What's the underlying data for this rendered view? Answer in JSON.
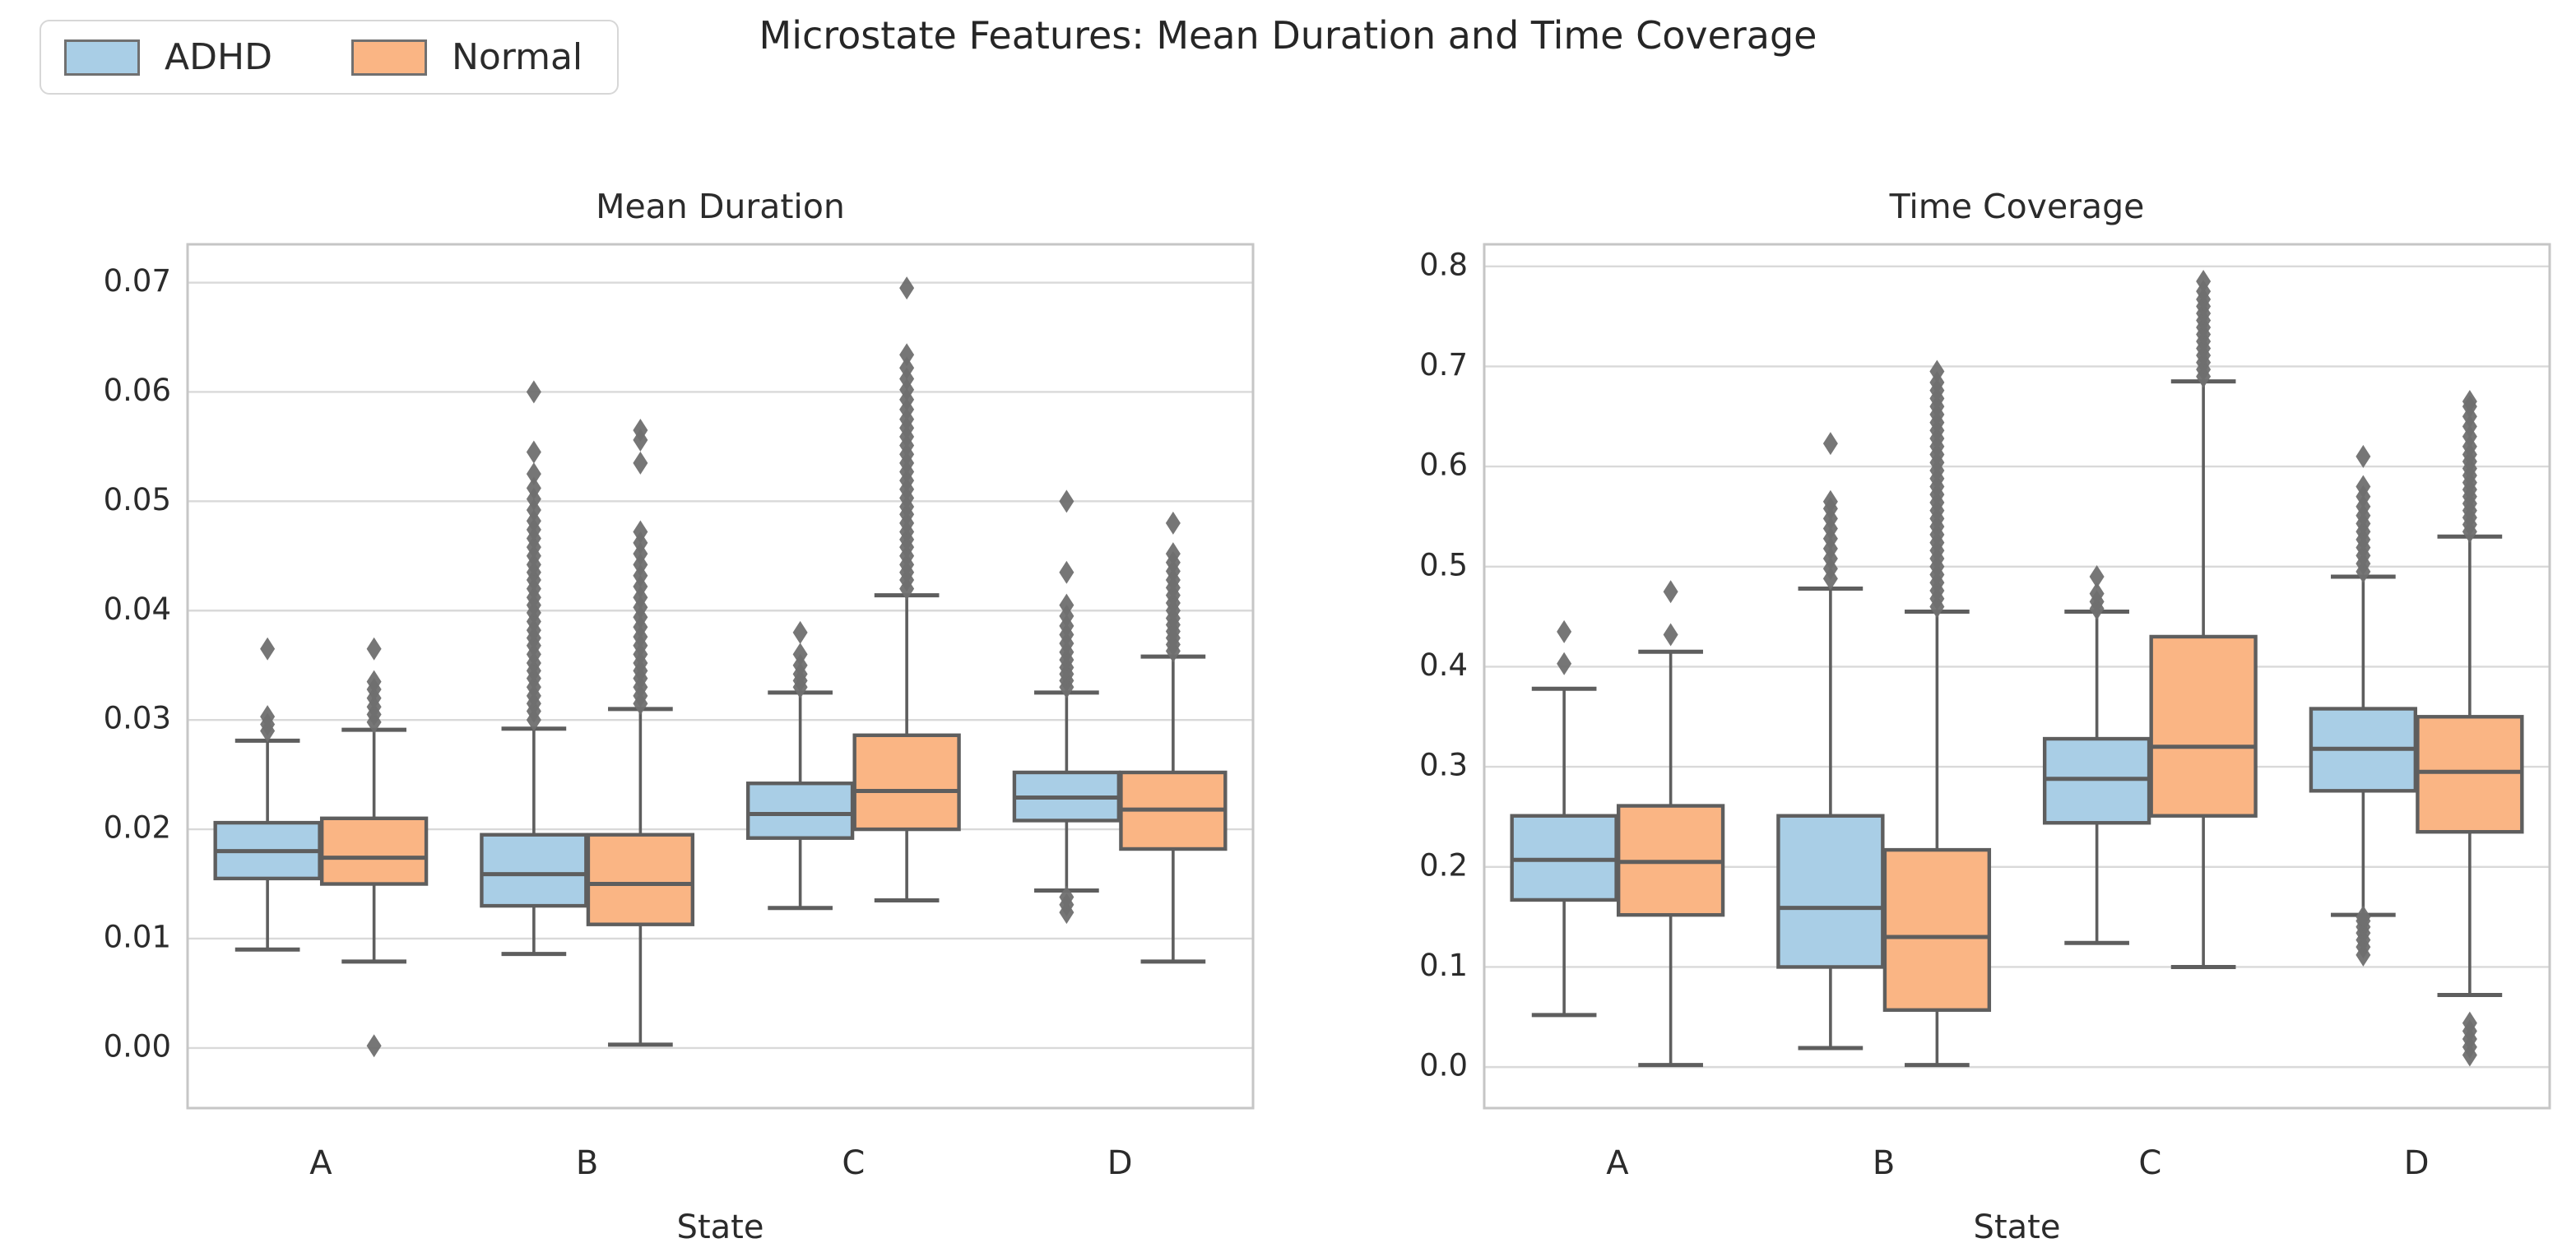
{
  "figure": {
    "title": "Microstate Features: Mean Duration and Time Coverage"
  },
  "legend": {
    "items": [
      {
        "label": "ADHD",
        "color": "#a9cee6"
      },
      {
        "label": "Normal",
        "color": "#fab584"
      }
    ]
  },
  "style": {
    "box_edge": "#5e5e5e",
    "flier": "#6f6f6f",
    "grid": "#d9d9d9",
    "spine": "#c6c6c6",
    "text": "#2b2b2b",
    "adhd_fill": "#a9cee6",
    "normal_fill": "#fab584"
  },
  "chart_data": [
    {
      "type": "box",
      "title": "Mean Duration",
      "xlabel": "State",
      "ylabel": "",
      "categories": [
        "A",
        "B",
        "C",
        "D"
      ],
      "grid": true,
      "legend_position": "figure-top-left",
      "ylim": [
        -0.0055,
        0.0735
      ],
      "yticks": [
        0.0,
        0.01,
        0.02,
        0.03,
        0.04,
        0.05,
        0.06,
        0.07
      ],
      "ytick_labels": [
        "0.00",
        "0.01",
        "0.02",
        "0.03",
        "0.04",
        "0.05",
        "0.06",
        "0.07"
      ],
      "series": [
        {
          "name": "ADHD",
          "boxes": [
            {
              "whislo": 0.009,
              "q1": 0.0155,
              "med": 0.018,
              "q3": 0.0206,
              "whishi": 0.0281,
              "fliers_high": [
                0.029,
                0.0296,
                0.0303,
                0.0365
              ],
              "fliers_low": []
            },
            {
              "whislo": 0.0086,
              "q1": 0.013,
              "med": 0.0159,
              "q3": 0.0195,
              "whishi": 0.0292,
              "fliers_high": [
                0.03,
                0.0308,
                0.0315,
                0.0322,
                0.033,
                0.0338,
                0.0345,
                0.0352,
                0.036,
                0.0368,
                0.0375,
                0.0382,
                0.039,
                0.0398,
                0.0405,
                0.0412,
                0.042,
                0.0428,
                0.0435,
                0.0442,
                0.045,
                0.0458,
                0.0466,
                0.0474,
                0.0482,
                0.0492,
                0.0502,
                0.0512,
                0.0525,
                0.0545,
                0.06
              ],
              "fliers_low": []
            },
            {
              "whislo": 0.0128,
              "q1": 0.0192,
              "med": 0.0214,
              "q3": 0.0242,
              "whishi": 0.0325,
              "fliers_high": [
                0.033,
                0.0336,
                0.0342,
                0.035,
                0.036,
                0.038
              ],
              "fliers_low": []
            },
            {
              "whislo": 0.0144,
              "q1": 0.0208,
              "med": 0.0229,
              "q3": 0.0252,
              "whishi": 0.0325,
              "fliers_high": [
                0.033,
                0.0336,
                0.0342,
                0.0348,
                0.0355,
                0.0362,
                0.037,
                0.0378,
                0.0386,
                0.0395,
                0.0405,
                0.0435,
                0.05
              ],
              "fliers_low": [
                0.0124,
                0.0131,
                0.0138
              ]
            }
          ]
        },
        {
          "name": "Normal",
          "boxes": [
            {
              "whislo": 0.0079,
              "q1": 0.015,
              "med": 0.0174,
              "q3": 0.021,
              "whishi": 0.0291,
              "fliers_high": [
                0.0298,
                0.0305,
                0.0312,
                0.032,
                0.0328,
                0.0335,
                0.0365
              ],
              "fliers_low": [
                0.0002
              ]
            },
            {
              "whislo": 0.0003,
              "q1": 0.0113,
              "med": 0.015,
              "q3": 0.0195,
              "whishi": 0.031,
              "fliers_high": [
                0.0315,
                0.0322,
                0.033,
                0.0338,
                0.0345,
                0.0352,
                0.036,
                0.0368,
                0.0376,
                0.0385,
                0.0394,
                0.0403,
                0.0412,
                0.0422,
                0.0432,
                0.0442,
                0.0452,
                0.0462,
                0.0472,
                0.0535,
                0.0556,
                0.0565
              ],
              "fliers_low": []
            },
            {
              "whislo": 0.0135,
              "q1": 0.02,
              "med": 0.0235,
              "q3": 0.0286,
              "whishi": 0.0414,
              "fliers_high": [
                0.042,
                0.0428,
                0.0435,
                0.0442,
                0.045,
                0.0458,
                0.0465,
                0.0472,
                0.048,
                0.0488,
                0.0495,
                0.0503,
                0.0511,
                0.0519,
                0.0527,
                0.0535,
                0.0543,
                0.0551,
                0.0559,
                0.0567,
                0.0575,
                0.0584,
                0.0593,
                0.0602,
                0.0612,
                0.0622,
                0.0634,
                0.0695
              ],
              "fliers_low": []
            },
            {
              "whislo": 0.0079,
              "q1": 0.0182,
              "med": 0.0218,
              "q3": 0.0252,
              "whishi": 0.0358,
              "fliers_high": [
                0.0363,
                0.0369,
                0.0375,
                0.0381,
                0.0387,
                0.0393,
                0.04,
                0.0407,
                0.0414,
                0.0421,
                0.0428,
                0.0436,
                0.0444,
                0.0452,
                0.048
              ],
              "fliers_low": []
            }
          ]
        }
      ]
    },
    {
      "type": "box",
      "title": "Time Coverage",
      "xlabel": "State",
      "ylabel": "",
      "categories": [
        "A",
        "B",
        "C",
        "D"
      ],
      "grid": true,
      "legend_position": "figure-top-left",
      "ylim": [
        -0.041,
        0.822
      ],
      "yticks": [
        0.0,
        0.1,
        0.2,
        0.3,
        0.4,
        0.5,
        0.6,
        0.7,
        0.8
      ],
      "ytick_labels": [
        "0.0",
        "0.1",
        "0.2",
        "0.3",
        "0.4",
        "0.5",
        "0.6",
        "0.7",
        "0.8"
      ],
      "series": [
        {
          "name": "ADHD",
          "boxes": [
            {
              "whislo": 0.052,
              "q1": 0.167,
              "med": 0.207,
              "q3": 0.251,
              "whishi": 0.378,
              "fliers_high": [
                0.403,
                0.435
              ],
              "fliers_low": []
            },
            {
              "whislo": 0.019,
              "q1": 0.1,
              "med": 0.159,
              "q3": 0.251,
              "whishi": 0.478,
              "fliers_high": [
                0.488,
                0.498,
                0.508,
                0.518,
                0.528,
                0.538,
                0.548,
                0.558,
                0.565,
                0.623
              ],
              "fliers_low": []
            },
            {
              "whislo": 0.124,
              "q1": 0.244,
              "med": 0.288,
              "q3": 0.328,
              "whishi": 0.455,
              "fliers_high": [
                0.458,
                0.465,
                0.473,
                0.49
              ],
              "fliers_low": []
            },
            {
              "whislo": 0.152,
              "q1": 0.276,
              "med": 0.318,
              "q3": 0.358,
              "whishi": 0.49,
              "fliers_high": [
                0.495,
                0.503,
                0.511,
                0.519,
                0.527,
                0.535,
                0.543,
                0.551,
                0.56,
                0.57,
                0.58,
                0.61
              ],
              "fliers_low": [
                0.112,
                0.12,
                0.127,
                0.134,
                0.14,
                0.146,
                0.15
              ]
            }
          ]
        },
        {
          "name": "Normal",
          "boxes": [
            {
              "whislo": 0.002,
              "q1": 0.152,
              "med": 0.205,
              "q3": 0.261,
              "whishi": 0.415,
              "fliers_high": [
                0.432,
                0.475
              ],
              "fliers_low": []
            },
            {
              "whislo": 0.002,
              "q1": 0.057,
              "med": 0.13,
              "q3": 0.217,
              "whishi": 0.455,
              "fliers_high": [
                0.46,
                0.468,
                0.476,
                0.484,
                0.492,
                0.5,
                0.508,
                0.516,
                0.524,
                0.532,
                0.54,
                0.548,
                0.556,
                0.564,
                0.572,
                0.58,
                0.588,
                0.596,
                0.604,
                0.612,
                0.62,
                0.628,
                0.636,
                0.644,
                0.652,
                0.66,
                0.668,
                0.676,
                0.684,
                0.695
              ],
              "fliers_low": []
            },
            {
              "whislo": 0.1,
              "q1": 0.251,
              "med": 0.32,
              "q3": 0.43,
              "whishi": 0.685,
              "fliers_high": [
                0.69,
                0.697,
                0.704,
                0.711,
                0.718,
                0.725,
                0.732,
                0.739,
                0.746,
                0.753,
                0.76,
                0.767,
                0.775,
                0.785
              ],
              "fliers_low": []
            },
            {
              "whislo": 0.072,
              "q1": 0.235,
              "med": 0.295,
              "q3": 0.35,
              "whishi": 0.53,
              "fliers_high": [
                0.535,
                0.542,
                0.549,
                0.556,
                0.563,
                0.57,
                0.577,
                0.584,
                0.591,
                0.598,
                0.605,
                0.612,
                0.62,
                0.63,
                0.64,
                0.65,
                0.66,
                0.665
              ],
              "fliers_low": [
                0.012,
                0.02,
                0.028,
                0.036,
                0.044
              ]
            }
          ]
        }
      ]
    }
  ]
}
